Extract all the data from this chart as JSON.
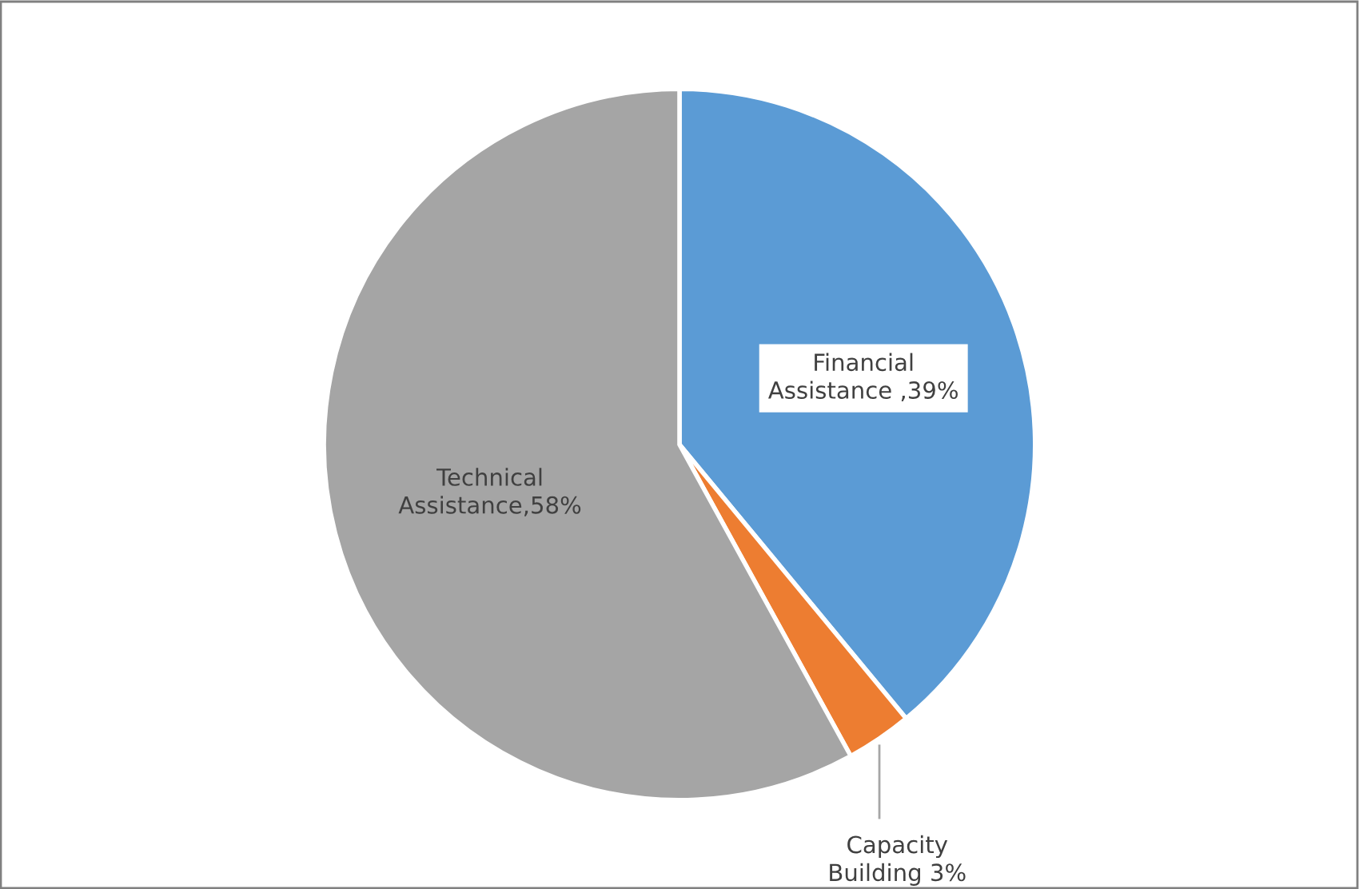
{
  "chart_data": {
    "type": "pie",
    "categories": [
      "Financial Assistance ,39%",
      "Capacity Building 3%",
      "Technical Assistance,58%"
    ],
    "values": [
      39,
      3,
      58
    ],
    "colors": [
      "#5b9bd5",
      "#ed7d31",
      "#a5a5a5"
    ]
  }
}
